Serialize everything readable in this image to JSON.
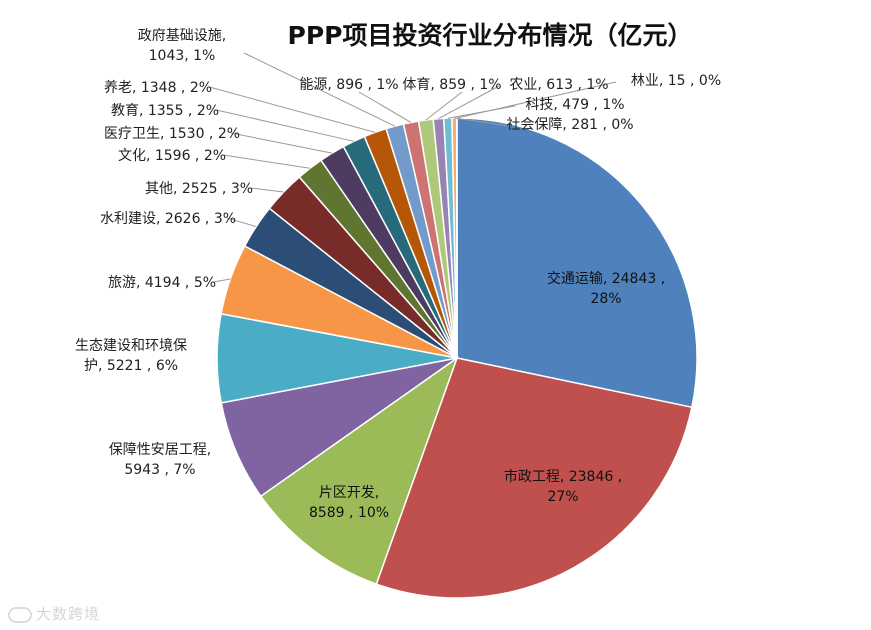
{
  "chart_data": {
    "type": "pie",
    "title": "PPP项目投资行业分布情况（亿元）",
    "slices": [
      {
        "name": "交通运输",
        "value": 24843,
        "pct": "28%",
        "color": "#4F81BD"
      },
      {
        "name": "市政工程",
        "value": 23846,
        "pct": "27%",
        "color": "#C0504D"
      },
      {
        "name": "片区开发",
        "value": 8589,
        "pct": "10%",
        "color": "#9BBB59"
      },
      {
        "name": "保障性安居工程",
        "value": 5943,
        "pct": "7%",
        "color": "#8064A2"
      },
      {
        "name": "生态建设和环境保护",
        "value": 5221,
        "pct": "6%",
        "color": "#4BACC6"
      },
      {
        "name": "旅游",
        "value": 4194,
        "pct": "5%",
        "color": "#F79646"
      },
      {
        "name": "水利建设",
        "value": 2626,
        "pct": "3%",
        "color": "#2C4D75"
      },
      {
        "name": "其他",
        "value": 2525,
        "pct": "3%",
        "color": "#772C2A"
      },
      {
        "name": "文化",
        "value": 1596,
        "pct": "2%",
        "color": "#5F7530"
      },
      {
        "name": "医疗卫生",
        "value": 1530,
        "pct": "2%",
        "color": "#4D3B62"
      },
      {
        "name": "教育",
        "value": 1355,
        "pct": "2%",
        "color": "#276A7C"
      },
      {
        "name": "养老",
        "value": 1348,
        "pct": "2%",
        "color": "#B65708"
      },
      {
        "name": "政府基础设施",
        "value": 1043,
        "pct": "1%",
        "color": "#729ACA"
      },
      {
        "name": "能源",
        "value": 896,
        "pct": "1%",
        "color": "#CD7371"
      },
      {
        "name": "体育",
        "value": 859,
        "pct": "1%",
        "color": "#AFC97A"
      },
      {
        "name": "农业",
        "value": 613,
        "pct": "1%",
        "color": "#9983B5"
      },
      {
        "name": "科技",
        "value": 479,
        "pct": "1%",
        "color": "#6FBDD1"
      },
      {
        "name": "社会保障",
        "value": 281,
        "pct": "0%",
        "color": "#F9AB6B"
      },
      {
        "name": "林业",
        "value": 15,
        "pct": "0%",
        "color": "#3A6596"
      }
    ]
  },
  "watermark": "大数跨境"
}
